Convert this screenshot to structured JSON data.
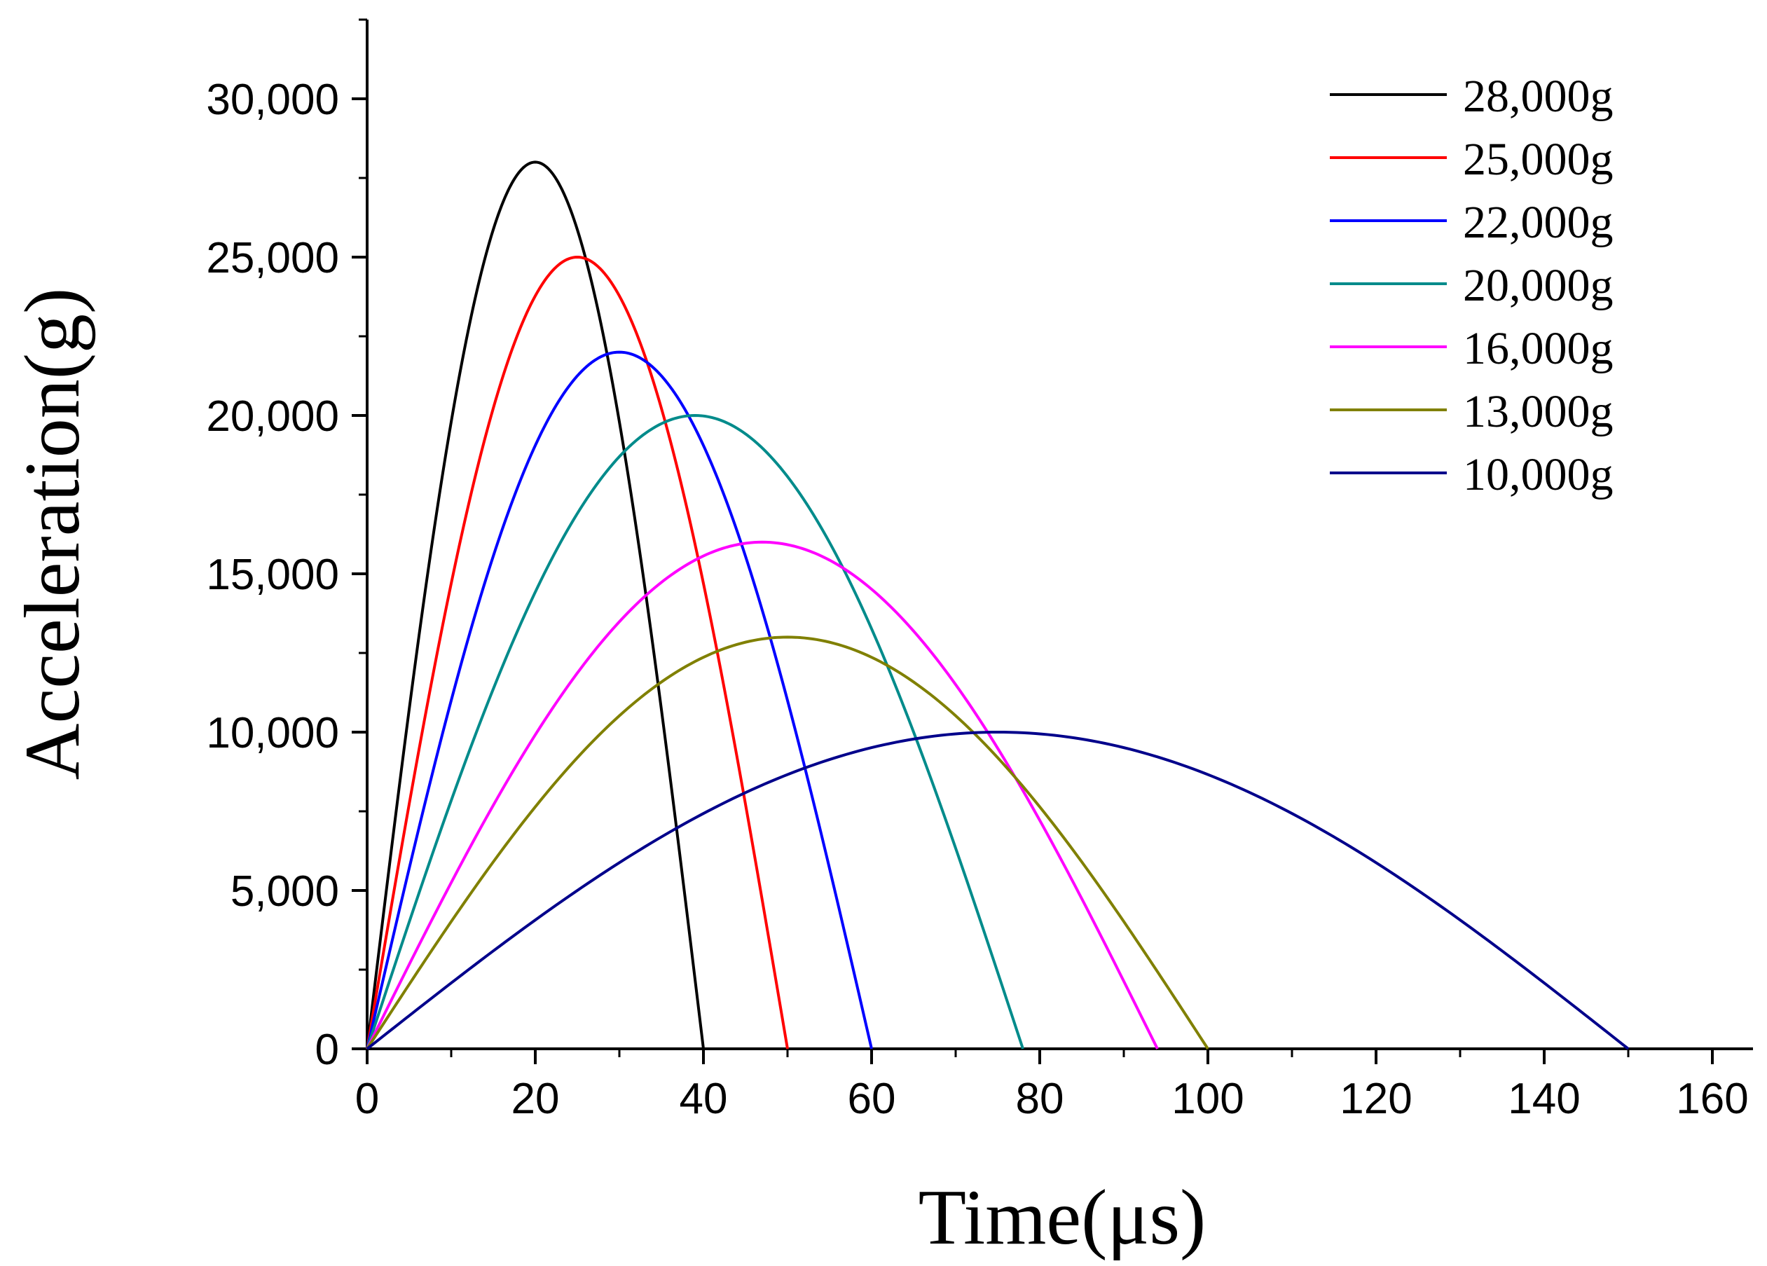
{
  "chart_data": {
    "type": "line",
    "title": "",
    "xlabel": "Time(μs)",
    "ylabel": "Acceleration(g)",
    "xlim": [
      0,
      165
    ],
    "ylim": [
      0,
      32500
    ],
    "x_ticks": [
      0,
      20,
      40,
      60,
      80,
      100,
      120,
      140,
      160
    ],
    "x_tick_labels": [
      "0",
      "20",
      "40",
      "60",
      "80",
      "100",
      "120",
      "140",
      "160"
    ],
    "y_ticks": [
      0,
      5000,
      10000,
      15000,
      20000,
      25000,
      30000
    ],
    "y_tick_labels": [
      "0",
      "5,000",
      "10,000",
      "15,000",
      "20,000",
      "25,000",
      "30,000"
    ],
    "grid": false,
    "legend_position": "top-right",
    "series": [
      {
        "name": "28,000g",
        "label": "28,000g",
        "color": "#000000",
        "peak": 28000,
        "duration": 40
      },
      {
        "name": "25,000g",
        "label": "25,000g",
        "color": "#ff0000",
        "peak": 25000,
        "duration": 50
      },
      {
        "name": "22,000g",
        "label": "22,000g",
        "color": "#0000ff",
        "peak": 22000,
        "duration": 60
      },
      {
        "name": "20,000g",
        "label": "20,000g",
        "color": "#008b8b",
        "peak": 20000,
        "duration": 78
      },
      {
        "name": "16,000g",
        "label": "16,000g",
        "color": "#ff00ff",
        "peak": 16000,
        "duration": 94
      },
      {
        "name": "13,000g",
        "label": "13,000g",
        "color": "#808000",
        "peak": 13000,
        "duration": 100
      },
      {
        "name": "10,000g",
        "label": "10,000g",
        "color": "#00008b",
        "peak": 10000,
        "duration": 150
      }
    ]
  }
}
